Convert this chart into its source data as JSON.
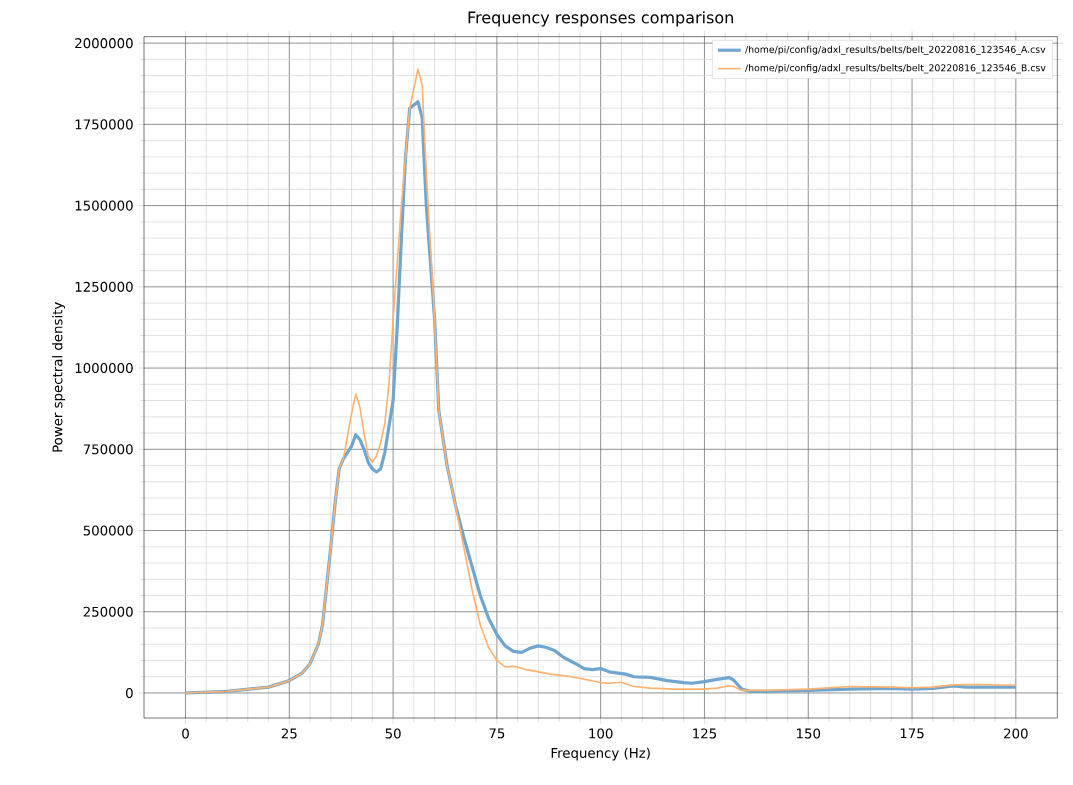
{
  "chart_data": {
    "type": "line",
    "title": "Frequency responses comparison",
    "xlabel": "Frequency (Hz)",
    "ylabel": "Power spectral density",
    "xlim": [
      -10,
      210
    ],
    "ylim": [
      -77000,
      2020000
    ],
    "xticks": [
      0,
      25,
      50,
      75,
      100,
      125,
      150,
      175,
      200
    ],
    "yticks": [
      0,
      250000,
      500000,
      750000,
      1000000,
      1250000,
      1500000,
      1750000,
      2000000
    ],
    "grid": true,
    "legend": "top right",
    "marker": "none",
    "line_style": "solid",
    "series": [
      {
        "name": "/home/pi/config/adxl_results/belts/belt_20220816_123546_A.csv",
        "color": "#6fa6cf",
        "x": [
          0,
          10,
          20,
          25,
          28,
          30,
          32,
          33,
          34,
          35,
          36,
          37,
          38,
          40,
          41,
          42,
          43,
          44,
          45,
          46,
          47,
          48,
          50,
          51,
          52,
          53,
          54,
          56,
          57,
          58,
          60,
          61,
          63,
          65,
          67,
          69,
          71,
          73,
          75,
          77,
          79,
          81,
          83,
          85,
          87,
          89,
          91,
          94,
          96,
          98,
          100,
          102,
          106,
          108,
          112,
          116,
          120,
          122,
          125,
          128,
          131,
          132,
          134,
          136,
          140,
          150,
          160,
          170,
          175,
          180,
          185,
          188,
          192,
          200
        ],
        "values": [
          0,
          5000,
          18000,
          38000,
          60000,
          90000,
          150000,
          210000,
          330000,
          450000,
          580000,
          690000,
          720000,
          760000,
          795000,
          780000,
          750000,
          710000,
          690000,
          680000,
          690000,
          740000,
          900000,
          1130000,
          1400000,
          1650000,
          1800000,
          1820000,
          1770000,
          1500000,
          1150000,
          870000,
          700000,
          580000,
          480000,
          390000,
          300000,
          230000,
          180000,
          145000,
          128000,
          125000,
          138000,
          145000,
          140000,
          130000,
          110000,
          90000,
          75000,
          72000,
          75000,
          65000,
          58000,
          50000,
          48000,
          38000,
          32000,
          30000,
          35000,
          42000,
          47000,
          40000,
          12000,
          5000,
          5000,
          8000,
          12000,
          14000,
          12000,
          14000,
          22000,
          18000,
          18000,
          18000
        ]
      },
      {
        "name": "/home/pi/config/adxl_results/belts/belt_20220816_123546_B.csv",
        "color": "#ffb170",
        "x": [
          0,
          10,
          20,
          25,
          28,
          30,
          32,
          33,
          34,
          35,
          36,
          37,
          38,
          39,
          40,
          41,
          42,
          43,
          44,
          45,
          46,
          47,
          48,
          49,
          50,
          52,
          54,
          56,
          57,
          58,
          60,
          61,
          63,
          65,
          67,
          69,
          71,
          73,
          75,
          77,
          79,
          80,
          82,
          85,
          88,
          92,
          96,
          100,
          102,
          105,
          108,
          112,
          118,
          125,
          128,
          131,
          132,
          134,
          140,
          150,
          160,
          170,
          175,
          180,
          185,
          190,
          200
        ],
        "values": [
          0,
          5000,
          18000,
          38000,
          60000,
          90000,
          150000,
          210000,
          330000,
          450000,
          580000,
          690000,
          720000,
          790000,
          860000,
          920000,
          880000,
          800000,
          730000,
          710000,
          730000,
          770000,
          830000,
          950000,
          1150000,
          1500000,
          1800000,
          1920000,
          1870000,
          1600000,
          1150000,
          870000,
          700000,
          580000,
          450000,
          320000,
          210000,
          140000,
          100000,
          80000,
          82000,
          80000,
          72000,
          65000,
          58000,
          52000,
          42000,
          32000,
          30000,
          33000,
          20000,
          15000,
          12000,
          12000,
          15000,
          22000,
          20000,
          8000,
          8000,
          12000,
          20000,
          18000,
          16000,
          18000,
          25000,
          26000,
          24000
        ]
      }
    ]
  }
}
